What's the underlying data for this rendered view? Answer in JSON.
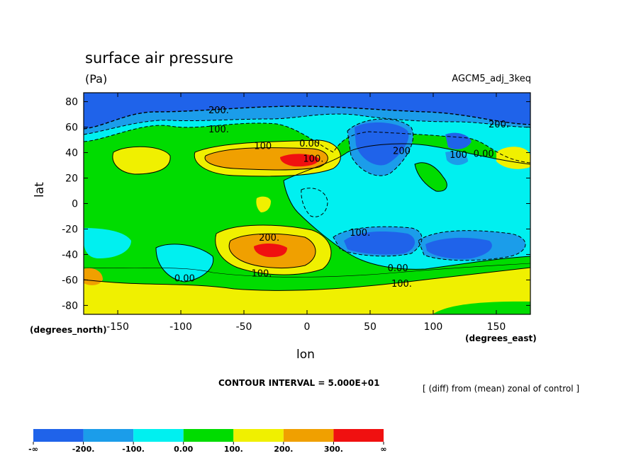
{
  "header": {
    "title": "surface air pressure",
    "units": "(Pa)",
    "run_name": "AGCM5_adj_3keq"
  },
  "footer": {
    "contour_interval": "CONTOUR INTERVAL = 5.000E+01",
    "note": "[ (diff) from (mean) zonal of control ]"
  },
  "chart_data": {
    "type": "contour",
    "title": "surface air pressure",
    "units": "(Pa)",
    "run_name": "AGCM5_adj_3keq",
    "xlabel": "lon",
    "ylabel": "lat",
    "x_unit": "(degrees_east)",
    "y_unit": "(degrees_north)",
    "xlim": [
      -177,
      177
    ],
    "ylim": [
      -87,
      87
    ],
    "x_ticks": [
      -150,
      -100,
      -50,
      0,
      50,
      100,
      150
    ],
    "x_tick_labels": [
      "-150",
      "-100",
      "-50",
      "0",
      "50",
      "100",
      "150"
    ],
    "y_ticks": [
      80,
      60,
      40,
      20,
      0,
      -20,
      -40,
      -60,
      -80
    ],
    "y_tick_labels": [
      "80",
      "60",
      "40",
      "20",
      "0",
      "-20",
      "-40",
      "-60",
      "-80"
    ],
    "contour_interval": 50,
    "contour_labels": [
      {
        "text": "200.",
        "lon": -70,
        "lat": 73
      },
      {
        "text": "100.",
        "lon": -70,
        "lat": 58
      },
      {
        "text": "100",
        "lon": -35,
        "lat": 45
      },
      {
        "text": "0.00",
        "lon": 2,
        "lat": 47
      },
      {
        "text": "100.",
        "lon": 5,
        "lat": 35
      },
      {
        "text": "200",
        "lon": 75,
        "lat": 41
      },
      {
        "text": "100",
        "lon": 120,
        "lat": 38
      },
      {
        "text": "0.00",
        "lon": 140,
        "lat": 39
      },
      {
        "text": "200.",
        "lon": 152,
        "lat": 62
      },
      {
        "text": "200.",
        "lon": -30,
        "lat": -27
      },
      {
        "text": "100.",
        "lon": 42,
        "lat": -23
      },
      {
        "text": "100.",
        "lon": -36,
        "lat": -55
      },
      {
        "text": "0.00",
        "lon": -97,
        "lat": -59
      },
      {
        "text": "0.00",
        "lon": 72,
        "lat": -51
      },
      {
        "text": "100.",
        "lon": 75,
        "lat": -63
      }
    ],
    "features": [
      {
        "lon": -58,
        "lat": 35,
        "level": "300."
      },
      {
        "lon": -10,
        "lat": 35,
        "level": "+inf"
      },
      {
        "lon": -32,
        "lat": -37,
        "level": "+inf"
      },
      {
        "lon": 60,
        "lat": -32,
        "level": "-200."
      },
      {
        "lon": 142,
        "lat": -35,
        "level": "-200."
      },
      {
        "lon": 63,
        "lat": 50,
        "level": "-200."
      },
      {
        "lon": 120,
        "lat": 52,
        "level": "-200."
      },
      {
        "lon": -135,
        "lat": 34,
        "level": "100."
      },
      {
        "lon": 163,
        "lat": 35,
        "level": "100."
      },
      {
        "lon": -100,
        "lat": -40,
        "level": "-100."
      },
      {
        "lon": -170,
        "lat": -58,
        "level": "200."
      }
    ],
    "legend": {
      "colors": [
        "#1f63ea",
        "#1b9dea",
        "#00f0f0",
        "#00dc00",
        "#f0f000",
        "#f0a000",
        "#f01010"
      ],
      "labels": [
        "-∞",
        "-200.",
        "-100.",
        "0.00",
        "100.",
        "200.",
        "300.",
        "∞"
      ]
    },
    "levels": [
      -200,
      -100,
      0,
      100,
      200,
      300
    ]
  }
}
